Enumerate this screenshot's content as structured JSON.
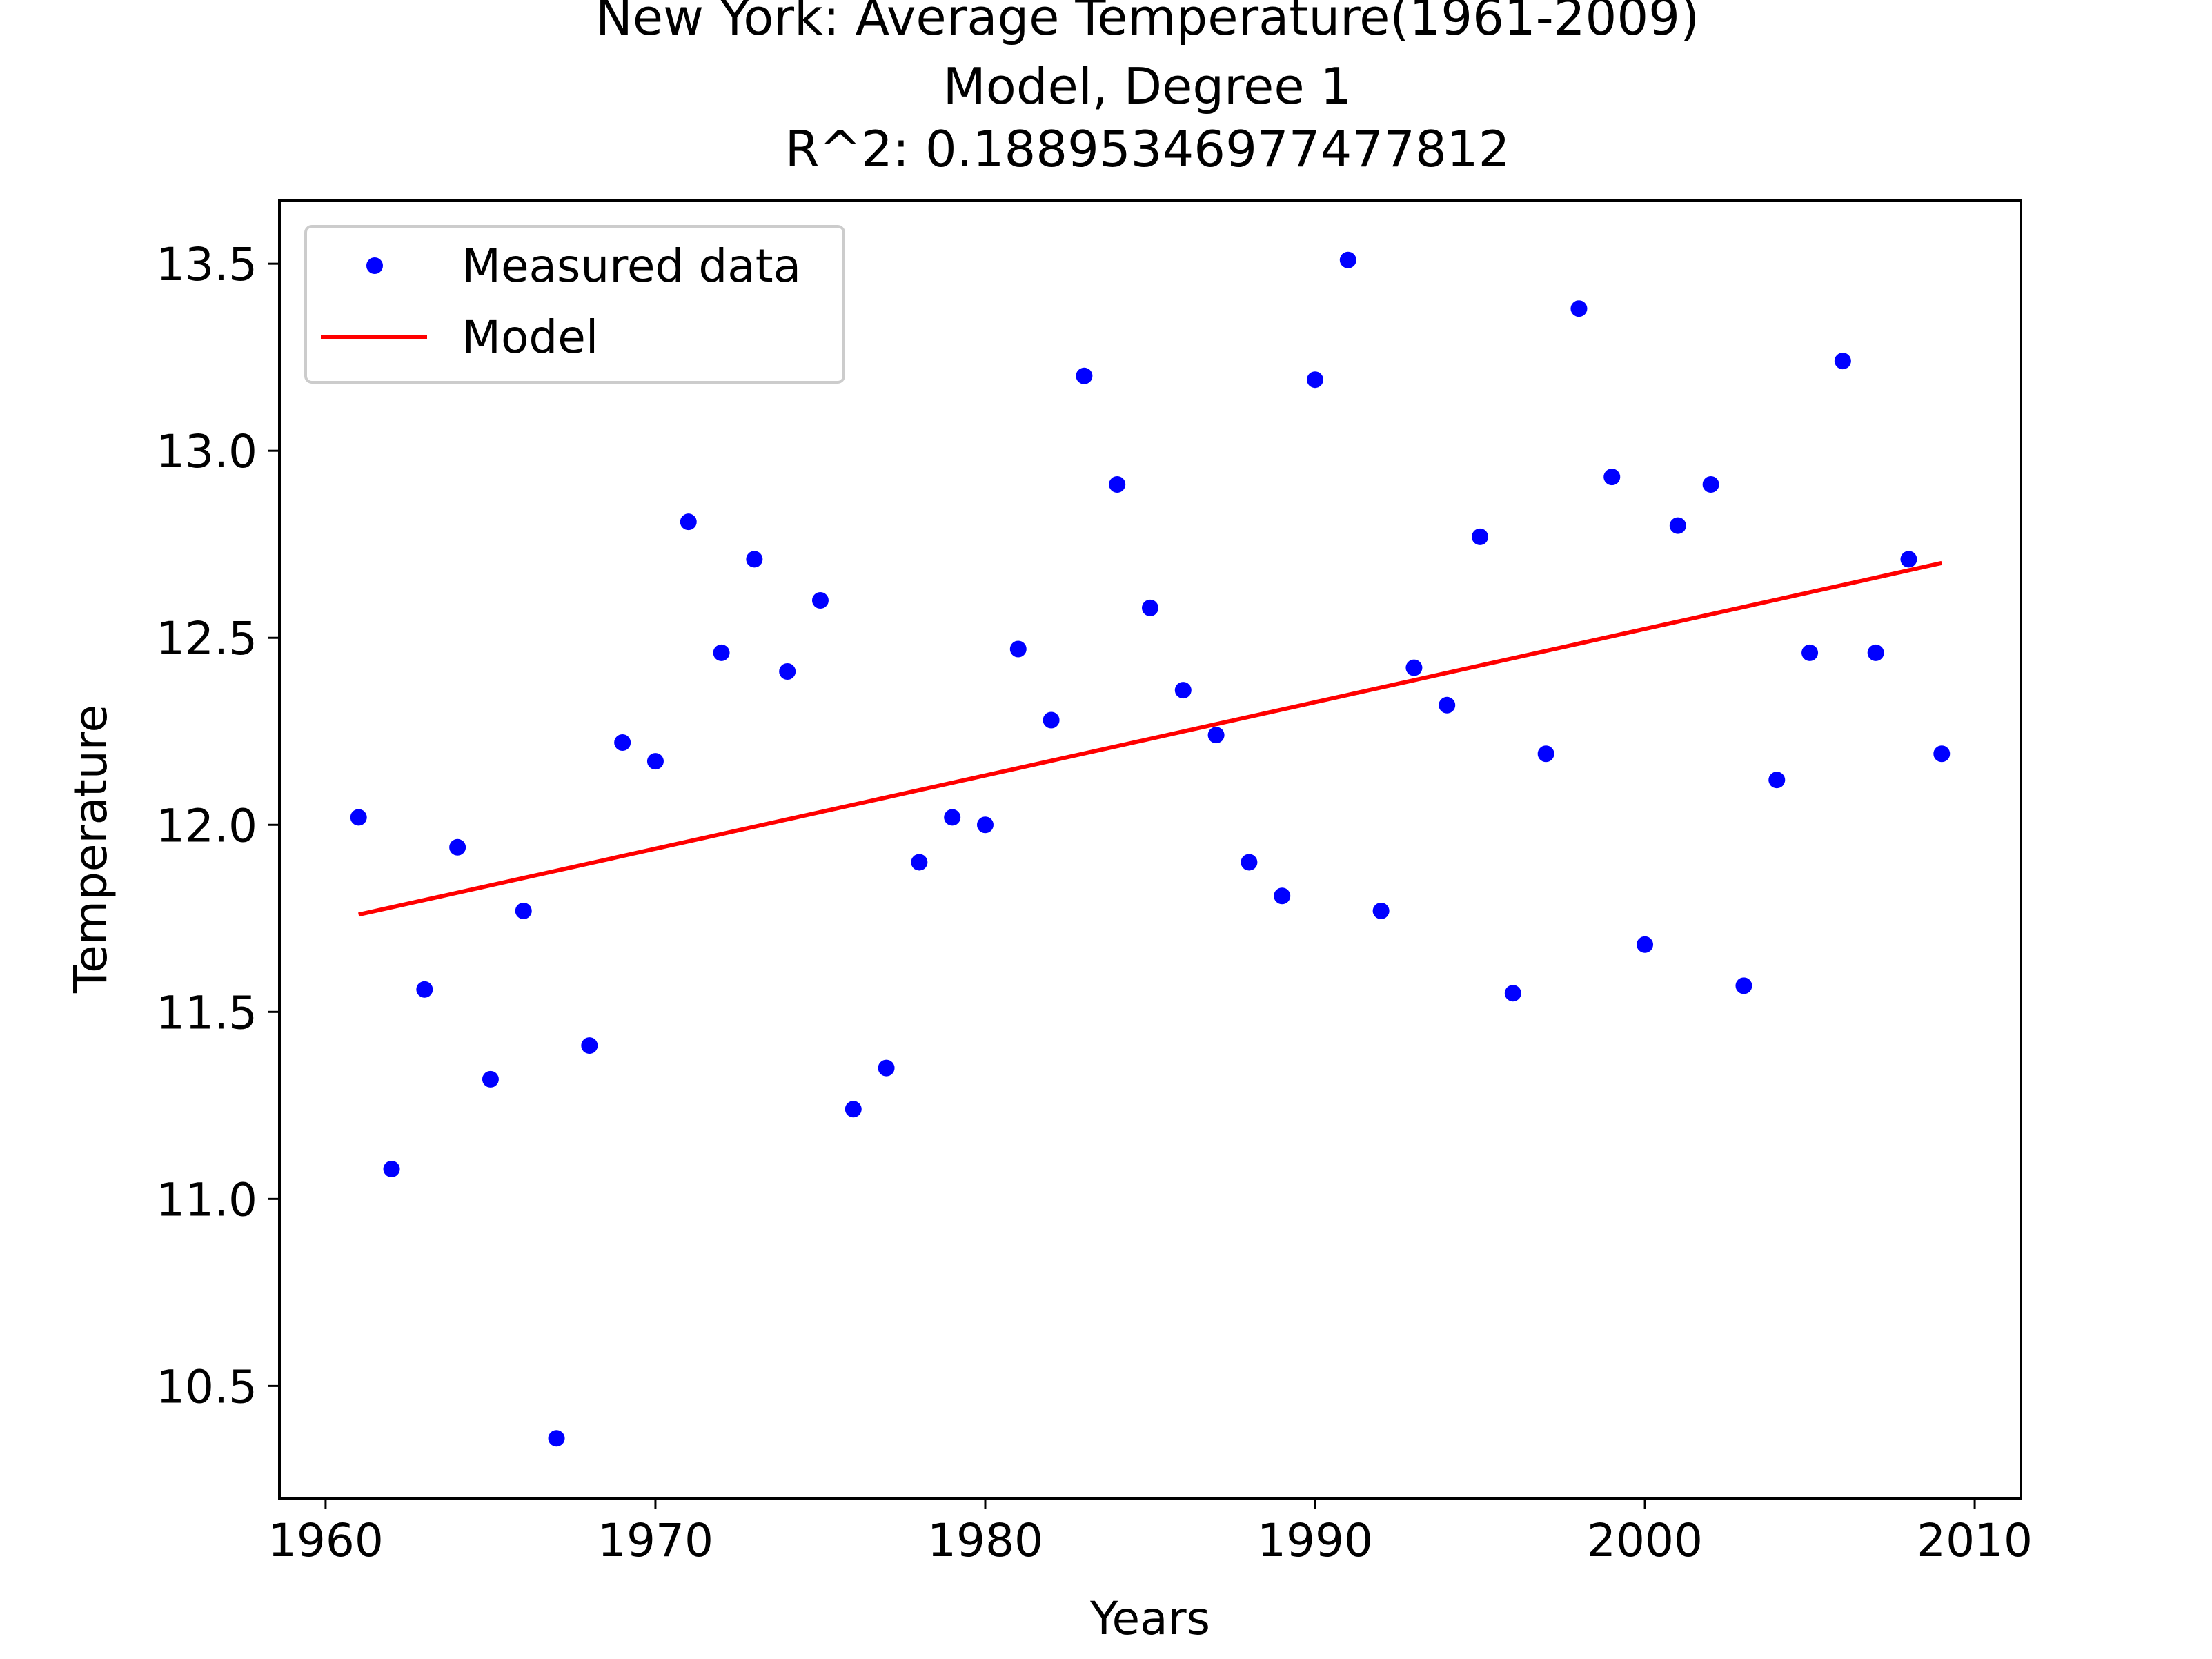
{
  "chart_data": {
    "type": "scatter",
    "title_lines": [
      "New York: Average Temperature(1961-2009)",
      "Model, Degree 1",
      "R^2: 0.18895346977477812"
    ],
    "xlabel": "Years",
    "ylabel": "Temperature",
    "xlim": [
      1958.6,
      2011.4
    ],
    "ylim": [
      10.2,
      13.67
    ],
    "xticks": [
      1960,
      1970,
      1980,
      1990,
      2000,
      2010
    ],
    "yticks": [
      10.5,
      11.0,
      11.5,
      12.0,
      12.5,
      13.0,
      13.5
    ],
    "xtick_labels": [
      "1960",
      "1970",
      "1980",
      "1990",
      "2000",
      "2010"
    ],
    "ytick_labels": [
      "10.5",
      "11.0",
      "11.5",
      "12.0",
      "12.5",
      "13.0",
      "13.5"
    ],
    "grid": false,
    "legend_position": "upper left",
    "series": [
      {
        "name": "Measured data",
        "kind": "points",
        "color": "#0000ff",
        "x": [
          1961,
          1962,
          1963,
          1964,
          1965,
          1966,
          1967,
          1968,
          1969,
          1970,
          1971,
          1972,
          1973,
          1974,
          1975,
          1976,
          1977,
          1978,
          1979,
          1980,
          1981,
          1982,
          1983,
          1984,
          1985,
          1986,
          1987,
          1988,
          1989,
          1990,
          1991,
          1992,
          1993,
          1994,
          1995,
          1996,
          1997,
          1998,
          1999,
          2000,
          2001,
          2002,
          2003,
          2004,
          2005,
          2006,
          2007,
          2008,
          2009
        ],
        "y": [
          12.02,
          11.08,
          11.56,
          11.94,
          11.32,
          11.77,
          10.36,
          11.41,
          12.22,
          12.17,
          12.81,
          12.46,
          12.71,
          12.41,
          12.6,
          11.24,
          11.35,
          11.9,
          12.02,
          12.0,
          12.47,
          12.28,
          13.2,
          12.91,
          12.58,
          12.36,
          12.24,
          11.9,
          11.81,
          13.19,
          13.51,
          11.77,
          12.42,
          12.32,
          12.77,
          11.55,
          12.19,
          13.38,
          12.93,
          11.68,
          12.8,
          12.91,
          11.57,
          12.12,
          12.46,
          13.24,
          12.46,
          12.71,
          12.19
        ]
      },
      {
        "name": "Model",
        "kind": "line",
        "color": "#ff0000",
        "x": [
          1961,
          2009
        ],
        "y": [
          11.76,
          12.7
        ]
      }
    ]
  }
}
